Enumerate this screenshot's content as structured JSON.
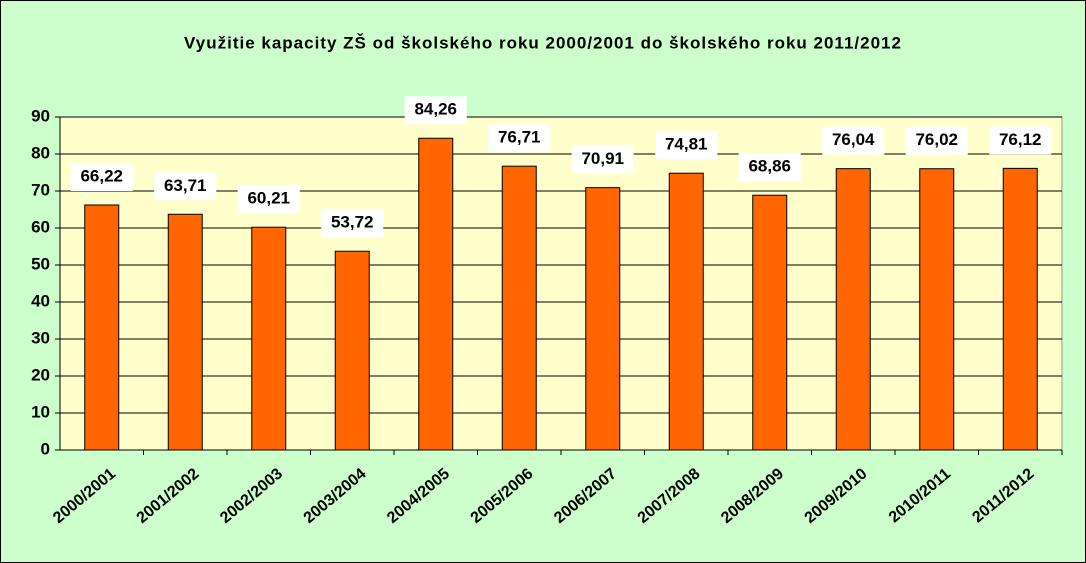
{
  "chart_data": {
    "type": "bar",
    "title": "Využitie kapacity ZŠ od školského roku 2000/2001 do školského roku 2011/2012",
    "categories": [
      "2000/2001",
      "2001/2002",
      "2002/2003",
      "2003/2004",
      "2004/2005",
      "2005/2006",
      "2006/2007",
      "2007/2008",
      "2008/2009",
      "2009/2010",
      "2010/2011",
      "2011/2012"
    ],
    "values": [
      66.22,
      63.71,
      60.21,
      53.72,
      84.26,
      76.71,
      70.91,
      74.81,
      68.86,
      76.04,
      76.02,
      76.12
    ],
    "value_labels": [
      "66,22",
      "63,71",
      "60,21",
      "53,72",
      "84,26",
      "76,71",
      "70,91",
      "74,81",
      "68,86",
      "76,04",
      "76,02",
      "76,12"
    ],
    "color": "#ff6600",
    "ylim": [
      0,
      90
    ],
    "yticks": [
      0,
      10,
      20,
      30,
      40,
      50,
      60,
      70,
      80,
      90
    ],
    "grid": true
  }
}
